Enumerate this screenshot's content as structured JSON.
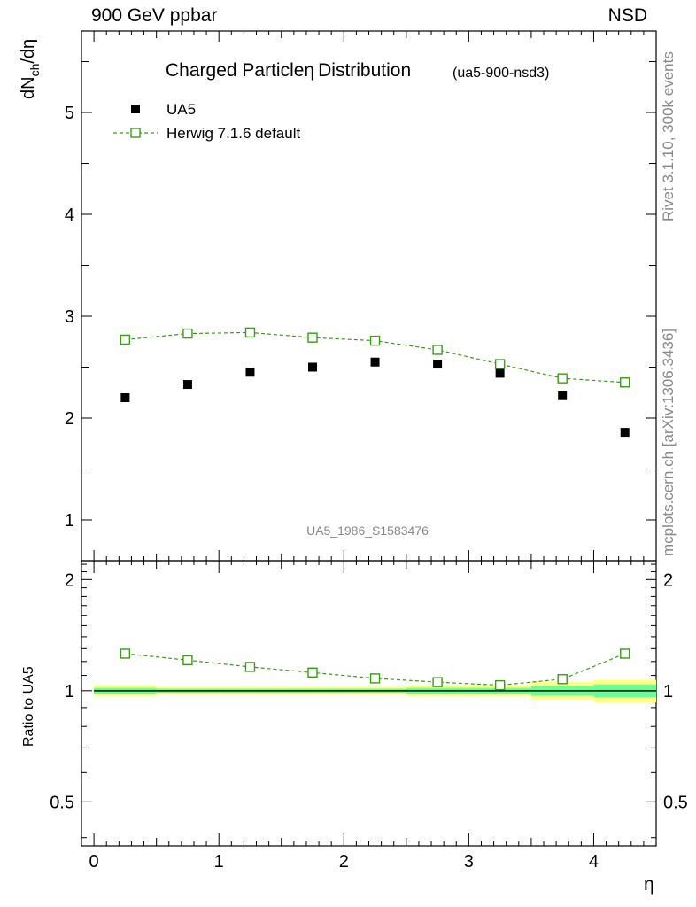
{
  "header": {
    "left_label": "900 GeV ppbar",
    "right_label": "NSD"
  },
  "side_labels": {
    "rivet": "Rivet 3.1.10,  300k events",
    "mcplots": "mcplots.cern.ch [arXiv:1306.3436]"
  },
  "colors": {
    "mc_line": "#3a9a1a",
    "data_marker": "#000000",
    "band_yellow": "#ffff80",
    "band_green": "#66ff99",
    "analysis_label": "#888888"
  },
  "chart_data": [
    {
      "type": "scatter",
      "title": "Charged Particle",
      "title_symbol": "η",
      "title_rest": "Distribution",
      "subtitle": "(ua5-900-nsd3)",
      "ylabel": "dN_ch/dη",
      "ylabel_main": "dN",
      "ylabel_sub": "ch",
      "ylabel_tail": "/dη",
      "analysis_label": "UA5_1986_S1583476",
      "xlim": [
        -0.1,
        4.5
      ],
      "ylim": [
        0.6,
        5.8
      ],
      "yticks": [
        "1",
        "2",
        "3",
        "4",
        "5"
      ],
      "x": [
        0.25,
        0.75,
        1.25,
        1.75,
        2.25,
        2.75,
        3.25,
        3.75,
        4.25
      ],
      "series": [
        {
          "name": "UA5",
          "marker": "filled-square",
          "values": [
            2.2,
            2.33,
            2.45,
            2.5,
            2.55,
            2.53,
            2.44,
            2.22,
            1.86
          ]
        },
        {
          "name": "Herwig 7.1.6 default",
          "marker": "open-square",
          "line": "dashed",
          "values": [
            2.77,
            2.83,
            2.84,
            2.79,
            2.76,
            2.67,
            2.53,
            2.39,
            2.35
          ]
        }
      ]
    },
    {
      "type": "line",
      "ylabel": "Ratio to UA5",
      "xlabel": "η",
      "xlim": [
        -0.1,
        4.5
      ],
      "ylim": [
        0.38,
        2.25
      ],
      "xticks": [
        "0",
        "1",
        "2",
        "3",
        "4"
      ],
      "yticks": [
        "0.5",
        "1",
        "2"
      ],
      "x": [
        0.25,
        0.75,
        1.25,
        1.75,
        2.25,
        2.75,
        3.25,
        3.75,
        4.25
      ],
      "ratio": [
        1.26,
        1.21,
        1.16,
        1.12,
        1.08,
        1.055,
        1.035,
        1.075,
        1.26
      ],
      "bins": [
        [
          0,
          0.5
        ],
        [
          0.5,
          1
        ],
        [
          1,
          1.5
        ],
        [
          1.5,
          2
        ],
        [
          2,
          2.5
        ],
        [
          2.5,
          3
        ],
        [
          3,
          3.5
        ],
        [
          3.5,
          4
        ],
        [
          4,
          4.5
        ]
      ],
      "band_yellow": [
        0.035,
        0.025,
        0.025,
        0.025,
        0.025,
        0.035,
        0.035,
        0.055,
        0.07
      ],
      "band_green": [
        0.018,
        0.013,
        0.013,
        0.013,
        0.013,
        0.018,
        0.018,
        0.03,
        0.04
      ]
    }
  ]
}
